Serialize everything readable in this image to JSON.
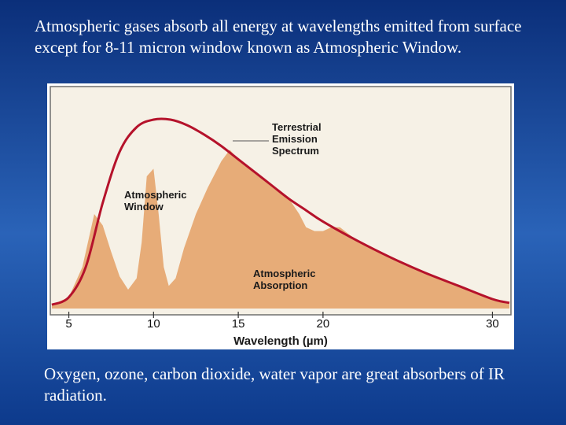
{
  "slide": {
    "top_text": "Atmospheric gases absorb all energy at wavelengths emitted from surface except for 8-11 micron window known as Atmospheric Window.",
    "bottom_text": "Oxygen, ozone, carbon dioxide, water vapor are great absorbers of IR radiation."
  },
  "chart_data": {
    "type": "area",
    "xlabel": "Wavelength (µm)",
    "ylabel": "",
    "xlim": [
      4,
      31
    ],
    "ylim": [
      0,
      1
    ],
    "x_ticks": [
      5,
      10,
      15,
      20,
      30
    ],
    "grid": false,
    "annotations": {
      "emission": [
        "Terrestrial",
        "Emission",
        "Spectrum"
      ],
      "window": [
        "Atmospheric",
        "Window"
      ],
      "absorption": [
        "Atmospheric",
        "Absorption"
      ]
    },
    "series": [
      {
        "name": "Terrestrial Emission Spectrum",
        "kind": "line",
        "color": "#b5122b",
        "x": [
          4.0,
          5.0,
          6.0,
          7.0,
          8.0,
          9.0,
          10.0,
          11.0,
          12.0,
          13.0,
          14.0,
          15.0,
          16.0,
          17.0,
          18.0,
          19.0,
          20.0,
          22.0,
          24.0,
          26.0,
          28.0,
          30.0,
          31.0
        ],
        "y": [
          0.02,
          0.06,
          0.22,
          0.56,
          0.83,
          0.96,
          1.0,
          1.0,
          0.97,
          0.92,
          0.86,
          0.79,
          0.72,
          0.65,
          0.58,
          0.52,
          0.46,
          0.36,
          0.27,
          0.19,
          0.12,
          0.05,
          0.03
        ]
      },
      {
        "name": "Atmospheric Absorption",
        "kind": "area",
        "color": "#e7ac78",
        "x": [
          4.0,
          5.0,
          5.8,
          6.5,
          7.0,
          7.5,
          8.0,
          8.5,
          9.0,
          9.3,
          9.6,
          10.0,
          10.3,
          10.6,
          10.9,
          11.3,
          11.8,
          12.5,
          13.2,
          14.0,
          14.5,
          15.0,
          16.0,
          17.0,
          18.0,
          18.6,
          19.0,
          19.5,
          20.0,
          20.5,
          21.0,
          22.0,
          24.0,
          26.0,
          28.0,
          30.0,
          31.0
        ],
        "y": [
          0.02,
          0.06,
          0.22,
          0.5,
          0.44,
          0.3,
          0.17,
          0.1,
          0.16,
          0.35,
          0.7,
          0.74,
          0.5,
          0.22,
          0.12,
          0.16,
          0.32,
          0.5,
          0.64,
          0.78,
          0.84,
          0.79,
          0.72,
          0.65,
          0.58,
          0.5,
          0.43,
          0.41,
          0.41,
          0.43,
          0.43,
          0.36,
          0.27,
          0.19,
          0.12,
          0.05,
          0.03
        ]
      }
    ]
  }
}
